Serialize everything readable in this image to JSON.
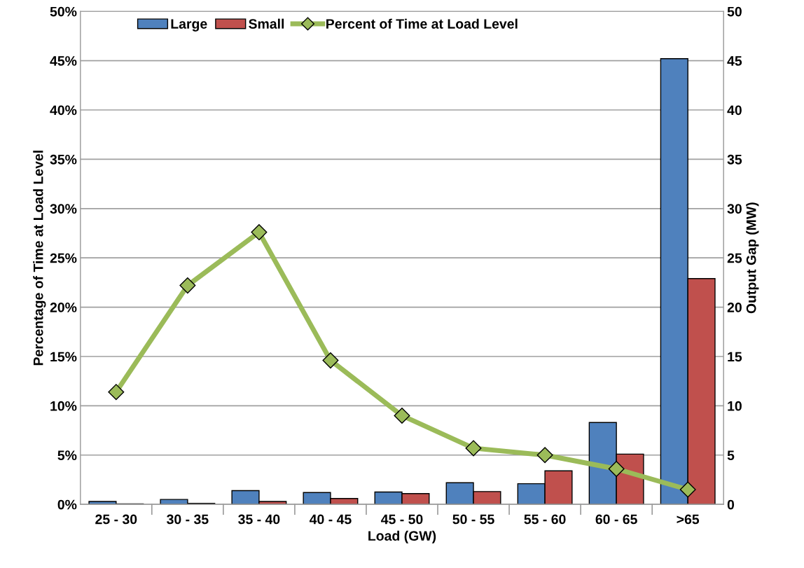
{
  "chart_data": {
    "type": "bar",
    "xlabel": "Load (GW)",
    "ylabel": "Percentage of Time at Load Level",
    "y2label": "Output Gap (MW)",
    "categories": [
      "25 - 30",
      "30 - 35",
      "35 - 40",
      "40 - 45",
      "45 - 50",
      "50 - 55",
      "55 - 60",
      "60 - 65",
      ">65"
    ],
    "series": [
      {
        "name": "Large",
        "color": "#4f81bd",
        "axis": "y2",
        "values": [
          0.3,
          0.5,
          1.4,
          1.2,
          1.25,
          2.2,
          2.1,
          8.3,
          45.2
        ]
      },
      {
        "name": "Small",
        "color": "#c0504d",
        "axis": "y2",
        "values": [
          0.05,
          0.1,
          0.3,
          0.6,
          1.1,
          1.3,
          3.4,
          5.1,
          22.9
        ]
      },
      {
        "name": "Percent of Time at Load Level",
        "type": "line",
        "color": "#9bbb59",
        "axis": "y",
        "marker": "diamond",
        "values": [
          11.4,
          22.2,
          27.6,
          14.6,
          9.0,
          5.7,
          5.0,
          3.6,
          1.5
        ]
      }
    ],
    "ylim": [
      0,
      50
    ],
    "yticks": [
      {
        "value": 0,
        "label": "0%"
      },
      {
        "value": 5,
        "label": "5%"
      },
      {
        "value": 10,
        "label": "10%"
      },
      {
        "value": 15,
        "label": "15%"
      },
      {
        "value": 20,
        "label": "20%"
      },
      {
        "value": 25,
        "label": "25%"
      },
      {
        "value": 30,
        "label": "30%"
      },
      {
        "value": 35,
        "label": "35%"
      },
      {
        "value": 40,
        "label": "40%"
      },
      {
        "value": 45,
        "label": "45%"
      },
      {
        "value": 50,
        "label": "50%"
      }
    ],
    "y2lim": [
      0,
      50
    ],
    "y2ticks": [
      0,
      5,
      10,
      15,
      20,
      25,
      30,
      35,
      40,
      45,
      50
    ],
    "grid": "y",
    "legend": "top left"
  }
}
